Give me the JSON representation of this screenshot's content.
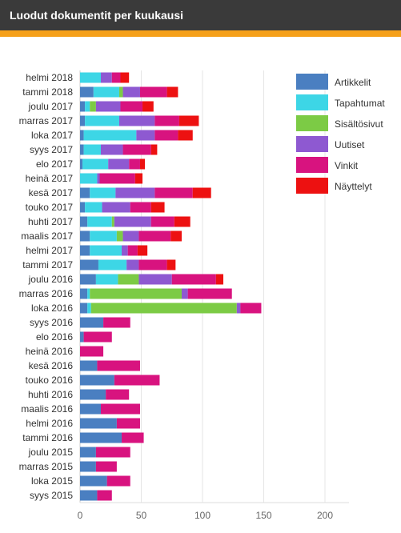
{
  "header": {
    "title": "Luodut dokumentit per kuukausi"
  },
  "colors": {
    "header_bg": "#3a3a3a",
    "accent_stripe": "#f5a01a"
  },
  "chart_data": {
    "type": "bar",
    "orientation": "horizontal",
    "stacked": true,
    "title": "",
    "xlabel": "",
    "ylabel": "",
    "xlim": [
      0,
      200
    ],
    "xticks": [
      0,
      50,
      100,
      150,
      200
    ],
    "grid": true,
    "legend_position": "top-right",
    "categories": [
      "helmi 2018",
      "tammi 2018",
      "joulu 2017",
      "marras 2017",
      "loka 2017",
      "syys 2017",
      "elo 2017",
      "heinä 2017",
      "kesä 2017",
      "touko 2017",
      "huhti 2017",
      "maalis 2017",
      "helmi 2017",
      "tammi 2017",
      "joulu 2016",
      "marras 2016",
      "loka 2016",
      "syys 2016",
      "elo 2016",
      "heinä 2016",
      "kesä 2016",
      "touko 2016",
      "huhti 2016",
      "maalis 2016",
      "helmi 2016",
      "tammi 2016",
      "joulu 2015",
      "marras 2015",
      "loka 2015",
      "syys 2015"
    ],
    "series": [
      {
        "name": "Artikkelit",
        "color": "#4a7fc1",
        "values": [
          0,
          11,
          4,
          4,
          3,
          3,
          2,
          0,
          8,
          4,
          6,
          8,
          8,
          15,
          13,
          6,
          6,
          19,
          3,
          0,
          14,
          28,
          21,
          17,
          30,
          34,
          13,
          13,
          22,
          14
        ]
      },
      {
        "name": "Tapahtumat",
        "color": "#3dd6e6",
        "values": [
          17,
          21,
          4,
          28,
          43,
          14,
          21,
          14,
          21,
          14,
          20,
          22,
          26,
          23,
          18,
          2,
          3,
          0,
          0,
          0,
          0,
          0,
          0,
          0,
          0,
          0,
          0,
          0,
          0,
          0
        ]
      },
      {
        "name": "Sisältösivut",
        "color": "#7ccb45",
        "values": [
          0,
          3,
          5,
          0,
          0,
          0,
          0,
          0,
          0,
          0,
          2,
          5,
          0,
          0,
          17,
          75,
          119,
          0,
          0,
          0,
          0,
          0,
          0,
          0,
          0,
          0,
          0,
          0,
          0,
          0
        ]
      },
      {
        "name": "Uutiset",
        "color": "#8e59d1",
        "values": [
          9,
          14,
          20,
          29,
          15,
          18,
          17,
          2,
          32,
          23,
          30,
          13,
          5,
          10,
          27,
          5,
          3,
          0,
          0,
          0,
          0,
          0,
          0,
          0,
          0,
          0,
          0,
          0,
          0,
          0
        ]
      },
      {
        "name": "Vinkit",
        "color": "#d8137f",
        "values": [
          7,
          22,
          18,
          20,
          19,
          23,
          9,
          29,
          31,
          17,
          19,
          26,
          8,
          23,
          36,
          36,
          17,
          22,
          23,
          19,
          35,
          37,
          19,
          32,
          19,
          18,
          28,
          17,
          19,
          12
        ]
      },
      {
        "name": "Näyttelyt",
        "color": "#ed1111",
        "values": [
          7,
          9,
          9,
          16,
          12,
          5,
          4,
          6,
          15,
          11,
          13,
          9,
          8,
          7,
          6,
          0,
          0,
          0,
          0,
          0,
          0,
          0,
          0,
          0,
          0,
          0,
          0,
          0,
          0,
          0
        ]
      }
    ]
  }
}
